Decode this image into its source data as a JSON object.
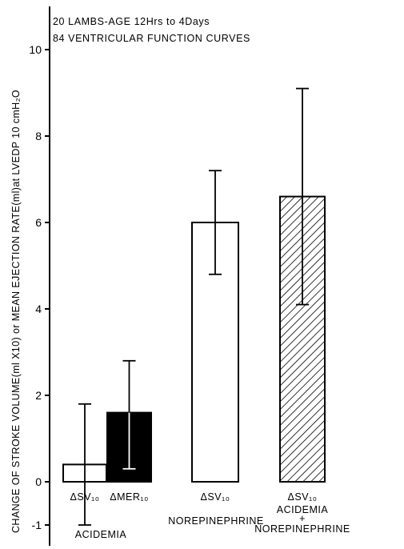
{
  "chart_data": {
    "type": "bar",
    "annotations": [
      "20 LAMBS-AGE 12Hrs to 4Days",
      "84 VENTRICULAR FUNCTION CURVES"
    ],
    "ylabel": "CHANGE OF STROKE VOLUME(ml X10) or MEAN EJECTION RATE(ml)at LVEDP 10 cmH₂O",
    "xlabel": "",
    "ylim": [
      -1.5,
      11
    ],
    "yticks": [
      -1,
      0,
      2,
      4,
      6,
      8,
      10
    ],
    "grid": false,
    "bars": [
      {
        "label": "ΔSV₁₀",
        "value": 0.4,
        "err_low": -1.0,
        "err_high": 1.8,
        "fill": "white"
      },
      {
        "label": "ΔMER₁₀",
        "value": 1.6,
        "err_low": 0.3,
        "err_high": 2.8,
        "fill": "black"
      },
      {
        "label": "ΔSV₁₀",
        "value": 6.0,
        "err_low": 4.8,
        "err_high": 7.2,
        "fill": "white"
      },
      {
        "label": "ΔSV₁₀",
        "value": 6.6,
        "err_low": 4.1,
        "err_high": 9.1,
        "fill": "hatched"
      }
    ],
    "groups": [
      {
        "label": "ACIDEMIA",
        "bars": [
          0,
          1
        ]
      },
      {
        "label": "NOREPINEPHRINE",
        "bars": [
          2
        ]
      },
      {
        "label": "ACIDEMIA\n+\nNOREPINEPHRINE",
        "bars": [
          3
        ]
      }
    ]
  }
}
